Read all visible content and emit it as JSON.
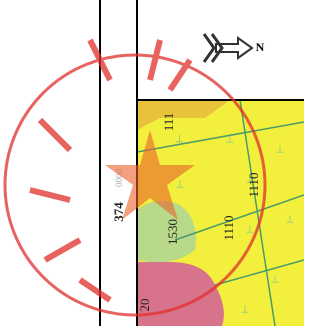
{
  "map": {
    "coordinate_label": "374",
    "coordinate_suffix": "0000",
    "north_label": "N",
    "parcel_labels": [
      "111",
      "1110",
      "1110",
      "1530",
      "20"
    ]
  }
}
